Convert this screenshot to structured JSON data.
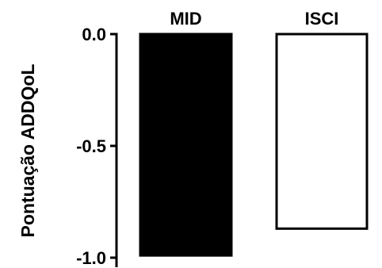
{
  "chart_data": {
    "type": "bar",
    "title": "",
    "xlabel": "",
    "ylabel": "Pontuação ADDQoL",
    "categories": [
      "MID",
      "ISCI"
    ],
    "values": [
      -0.99,
      -0.87
    ],
    "ylim": [
      -1.0,
      0.0
    ],
    "yticks": [
      0.0,
      -0.5,
      -1.0
    ],
    "ytick_labels": [
      "0.0",
      "-0.5",
      "-1.0"
    ],
    "bar_fills": [
      "#000000",
      "#ffffff"
    ],
    "bar_stroke": "#000000",
    "grid": false,
    "category_label_position": "top"
  }
}
